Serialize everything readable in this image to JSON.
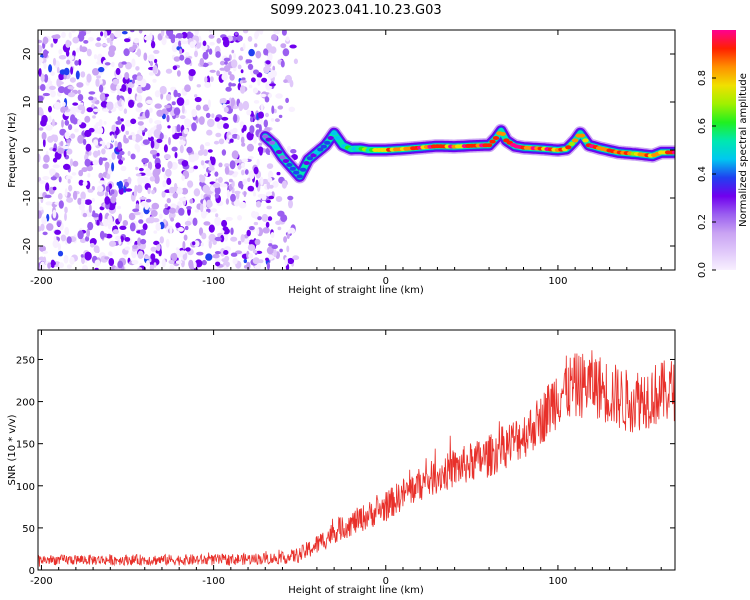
{
  "title": "S099.2023.041.10.23.G03",
  "colors": {
    "snr_line": "#e8302a",
    "frame": "#000000",
    "colormap": [
      "#f8f0ff",
      "#e0c8fa",
      "#c9a3f3",
      "#9b5ff0",
      "#7000ee",
      "#2040f0",
      "#00c8f0",
      "#00e8b0",
      "#20f020",
      "#a0f000",
      "#f0e000",
      "#ff9000",
      "#ff2000",
      "#ff0090"
    ]
  },
  "chart_data": [
    {
      "type": "heatmap",
      "name": "spectrogram",
      "xlabel": "Height of straight line (km)",
      "ylabel": "Frequency (Hz)",
      "xlim": [
        -202,
        168
      ],
      "ylim": [
        -25,
        25
      ],
      "xticks": [
        -200,
        -100,
        0,
        100
      ],
      "yticks": [
        -20,
        -10,
        0,
        10,
        20
      ],
      "colorbar": {
        "label": "Normalized spectral amplitude",
        "range": [
          0,
          1
        ],
        "ticks": [
          0.0,
          0.2,
          0.4,
          0.6,
          0.8
        ]
      },
      "noise_region_x": [
        -202,
        -52
      ],
      "ridge": {
        "x": [
          -70,
          -65,
          -60,
          -55,
          -50,
          -45,
          -40,
          -35,
          -30,
          -25,
          -20,
          -15,
          -10,
          -5,
          0,
          10,
          20,
          30,
          40,
          50,
          60,
          64,
          67,
          70,
          75,
          80,
          90,
          100,
          105,
          110,
          113,
          118,
          125,
          135,
          145,
          155,
          160,
          168
        ],
        "y": [
          2.8,
          1.2,
          -1.5,
          -3.5,
          -5.5,
          -2.0,
          -0.5,
          1.0,
          3.5,
          1.0,
          0.2,
          0.3,
          0.0,
          0.0,
          0.0,
          0.2,
          0.5,
          0.8,
          0.7,
          0.9,
          1.0,
          2.5,
          4.0,
          2.0,
          0.8,
          0.5,
          0.3,
          0.0,
          0.2,
          2.0,
          3.5,
          1.0,
          0.3,
          -0.5,
          -0.8,
          -1.2,
          -0.5,
          -0.5
        ],
        "amplitude": [
          0.3,
          0.35,
          0.35,
          0.35,
          0.3,
          0.35,
          0.35,
          0.4,
          0.45,
          0.5,
          0.55,
          0.6,
          0.65,
          0.7,
          0.8,
          0.85,
          0.9,
          0.9,
          0.85,
          0.9,
          0.95,
          0.9,
          0.85,
          0.9,
          0.9,
          0.85,
          0.85,
          0.9,
          0.85,
          0.8,
          0.8,
          0.85,
          0.85,
          0.85,
          0.8,
          0.85,
          0.85,
          0.85
        ]
      }
    },
    {
      "type": "line",
      "name": "snr",
      "xlabel": "Height of straight line (km)",
      "ylabel": "SNR (10 * v/v)",
      "xlim": [
        -202,
        168
      ],
      "ylim": [
        0,
        285
      ],
      "xticks": [
        -200,
        -100,
        0,
        100
      ],
      "yticks": [
        0,
        50,
        100,
        150,
        200,
        250
      ],
      "trend": {
        "x": [
          -202,
          -150,
          -100,
          -60,
          -50,
          -40,
          -30,
          -20,
          -10,
          0,
          10,
          20,
          30,
          40,
          50,
          60,
          70,
          80,
          90,
          95,
          100,
          105,
          110,
          120,
          130,
          140,
          150,
          160,
          168
        ],
        "y": [
          12,
          12,
          12,
          14,
          18,
          30,
          45,
          55,
          65,
          75,
          90,
          102,
          112,
          120,
          128,
          135,
          148,
          160,
          178,
          192,
          210,
          215,
          218,
          222,
          210,
          200,
          205,
          210,
          215
        ]
      },
      "noise": {
        "x": [
          -202,
          -60,
          -40,
          0,
          50,
          90,
          100,
          168
        ],
        "amplitude": [
          6,
          7,
          12,
          18,
          24,
          30,
          40,
          38
        ]
      }
    }
  ]
}
